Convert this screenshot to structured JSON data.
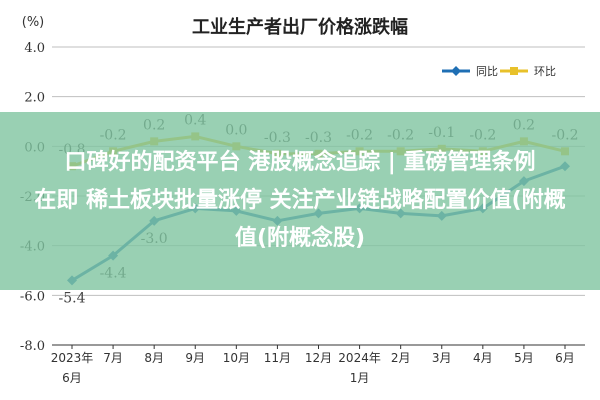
{
  "chart_data": {
    "type": "line",
    "title": "工业生产者出厂价格涨跌幅",
    "ylabel": "(%)",
    "ylim": [
      -8.0,
      4.0
    ],
    "yticks": [
      "4.0",
      "2.0",
      "0.0",
      "-2.0",
      "-4.0",
      "-6.0",
      "-8.0"
    ],
    "grid": true,
    "legend_position": "top-right",
    "x_labels": [
      {
        "top": "2023年",
        "bottom": "6月"
      },
      {
        "top": "7月",
        "bottom": ""
      },
      {
        "top": "8月",
        "bottom": ""
      },
      {
        "top": "9月",
        "bottom": ""
      },
      {
        "top": "10月",
        "bottom": ""
      },
      {
        "top": "11月",
        "bottom": ""
      },
      {
        "top": "12月",
        "bottom": ""
      },
      {
        "top": "2024年",
        "bottom": "1月"
      },
      {
        "top": "2月",
        "bottom": ""
      },
      {
        "top": "3月",
        "bottom": ""
      },
      {
        "top": "4月",
        "bottom": ""
      },
      {
        "top": "5月",
        "bottom": ""
      },
      {
        "top": "6月",
        "bottom": ""
      }
    ],
    "series": [
      {
        "name": "同比",
        "color": "#1f6fb4",
        "values": [
          -5.4,
          -4.4,
          -3.0,
          -2.5,
          -2.6,
          -3.0,
          -2.7,
          -2.5,
          -2.7,
          -2.8,
          -2.5,
          -1.4,
          -0.8
        ],
        "labels": [
          "-5.4",
          "-4.4",
          "-3.0",
          "",
          "",
          "",
          "",
          "",
          "",
          "",
          "",
          "",
          ""
        ]
      },
      {
        "name": "环比",
        "color": "#e8c12a",
        "values": [
          -0.8,
          -0.2,
          0.2,
          0.4,
          0.0,
          -0.3,
          -0.3,
          -0.2,
          -0.2,
          -0.1,
          -0.2,
          0.2,
          -0.2
        ],
        "labels": [
          "-0.8",
          "-0.2",
          "0.2",
          "0.4",
          "0.0",
          "-0.3",
          "-0.3",
          "-0.2",
          "-0.2",
          "-0.1",
          "-0.2",
          "0.2",
          "-0.2"
        ]
      }
    ]
  },
  "banner": {
    "line1": "口碑好的配资平台 港股概念追踪 | 重磅管理条例",
    "line2": "在即 稀土板块批量涨停 关注产业链战略配置价值(附概",
    "line3": "值(附概念股)"
  },
  "colors": {
    "grid": "#bfbfbf",
    "axis": "#333333",
    "banner": "#80c4a0"
  }
}
